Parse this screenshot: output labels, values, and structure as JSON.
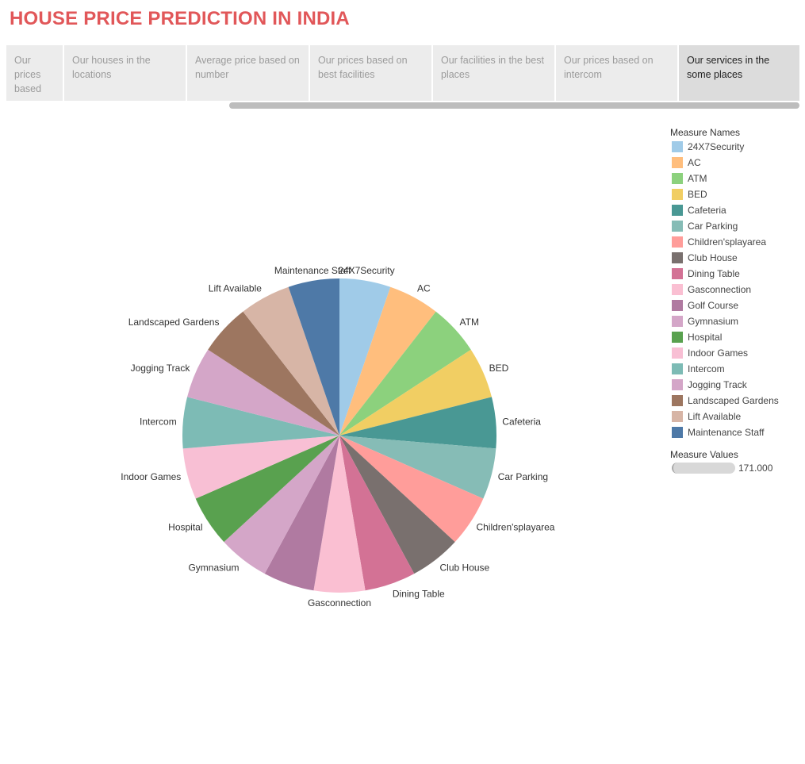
{
  "header": {
    "title": "HOUSE PRICE PREDICTION IN INDIA"
  },
  "tabs": [
    {
      "label": "Our prices based on ..",
      "active": false
    },
    {
      "label": "Our houses in the locations",
      "active": false
    },
    {
      "label": "Average price based on number",
      "active": false
    },
    {
      "label": "Our prices based on best facilities",
      "active": false
    },
    {
      "label": "Our facilities in the best places",
      "active": false
    },
    {
      "label": "Our prices based on intercom",
      "active": false
    },
    {
      "label": "Our services in the some places",
      "active": true
    }
  ],
  "legend": {
    "title": "Measure Names",
    "measure_values_title": "Measure Values",
    "measure_values_value": "171.000"
  },
  "chart_data": {
    "type": "pie",
    "categories": [
      "24X7Security",
      "AC",
      "ATM",
      "BED",
      "Cafeteria",
      "Car Parking",
      "Children'splayarea",
      "Club House",
      "Dining Table",
      "Gasconnection",
      "Golf Course",
      "Gymnasium",
      "Hospital",
      "Indoor Games",
      "Intercom",
      "Jogging Track",
      "Landscaped Gardens",
      "Lift Available",
      "Maintenance Staff"
    ],
    "values": [
      171,
      171,
      171,
      171,
      171,
      171,
      171,
      171,
      171,
      171,
      171,
      171,
      171,
      171,
      171,
      171,
      171,
      171,
      171
    ],
    "colors": [
      "#a0cbe8",
      "#ffbe7d",
      "#8cd17d",
      "#f1ce63",
      "#499894",
      "#86bcb6",
      "#ff9d9a",
      "#79706e",
      "#d37295",
      "#fabfd2",
      "#b07aa1",
      "#d4a6c8",
      "#59a14f",
      "#f8bfd4",
      "#7dbbb5",
      "#d4a6c8",
      "#9d7660",
      "#d7b5a6",
      "#4e79a7"
    ],
    "slice_labels": [
      "24X7Security",
      "AC",
      "ATM",
      "BED",
      "Cafeteria",
      "Car Parking",
      "Children'splayarea",
      "Club House",
      "Dining Table",
      "Gasconnection",
      "",
      "Gymnasium",
      "Hospital",
      "Indoor Games",
      "Intercom",
      "Jogging Track",
      "Landscaped Gardens",
      "Lift Available",
      "Maintenance Staff"
    ],
    "legend_placement": "right"
  }
}
